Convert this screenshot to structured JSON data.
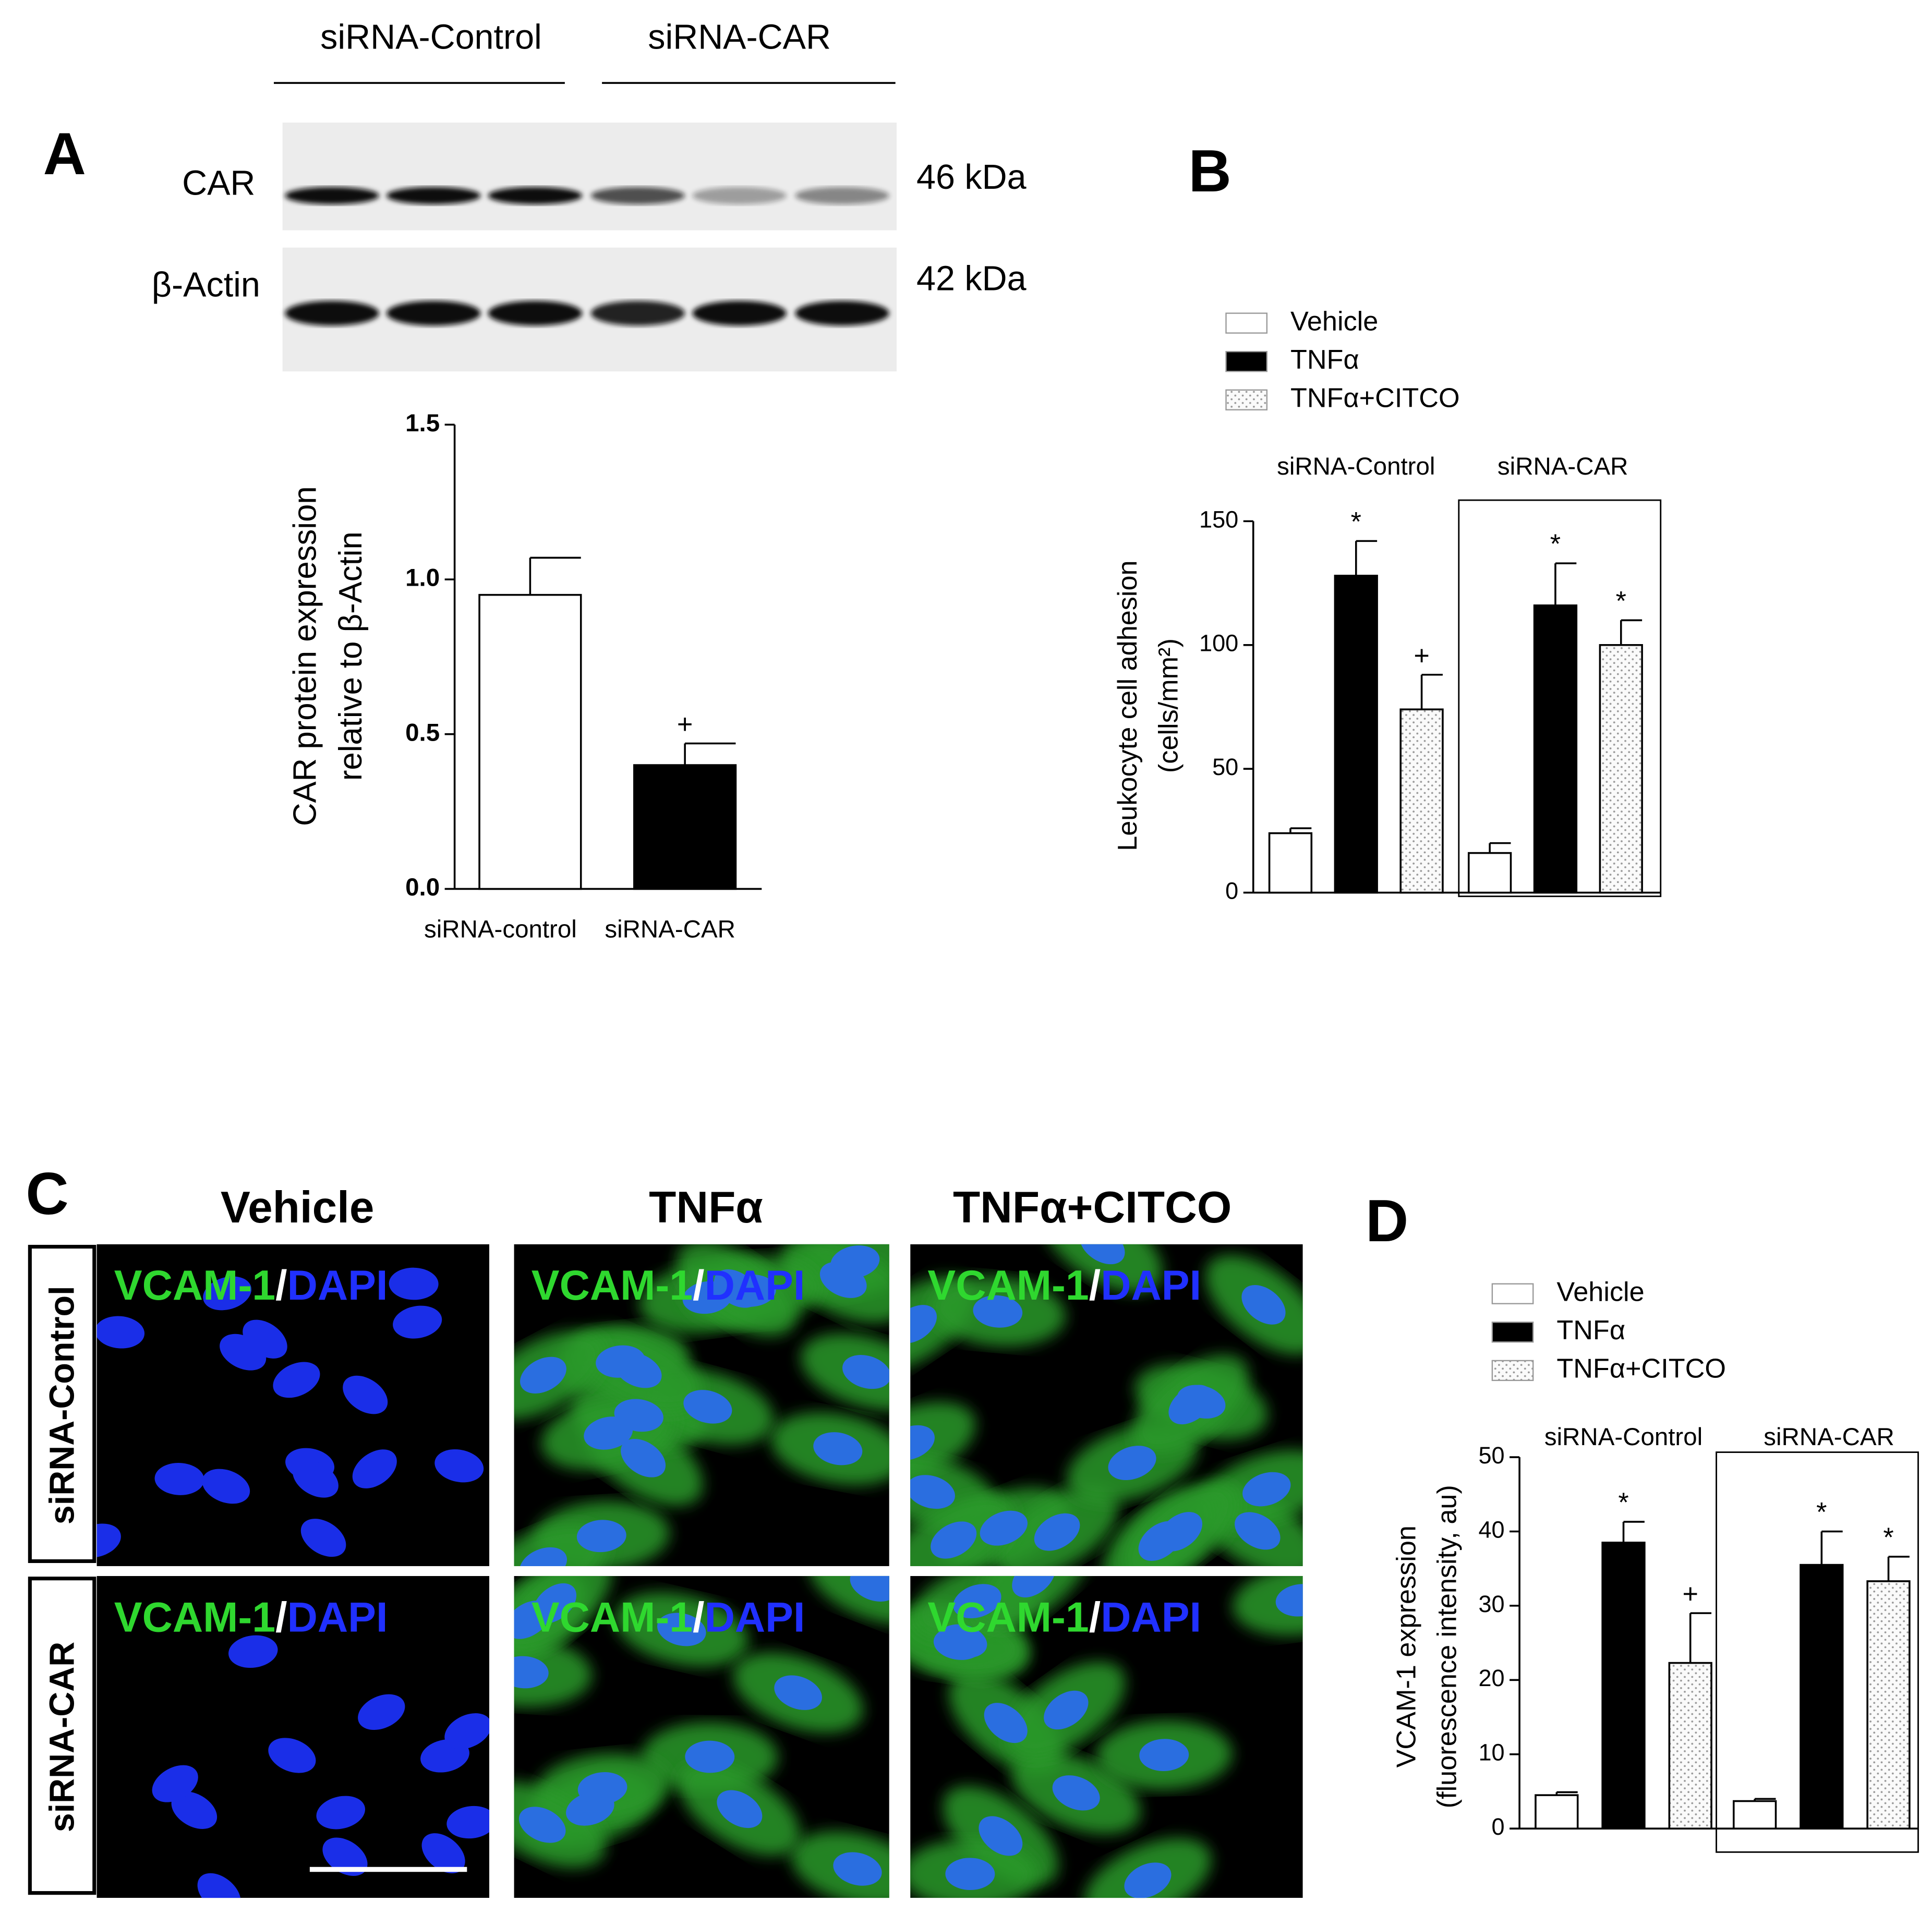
{
  "panel_labels": [
    "A",
    "B",
    "C",
    "D"
  ],
  "blot": {
    "groups": [
      "siRNA-Control",
      "siRNA-CAR"
    ],
    "rows": [
      {
        "label": "CAR",
        "size": "46 kDa"
      },
      {
        "label": "β-Actin",
        "size": "42 kDa"
      }
    ]
  },
  "chart_data": [
    {
      "type": "bar",
      "y_label": [
        "CAR protein expression",
        "relative to β-Actin"
      ],
      "categories": [
        "siRNA-control",
        "siRNA-CAR"
      ],
      "values": [
        0.95,
        0.4
      ],
      "errors": [
        0.12,
        0.07
      ],
      "colors": [
        "#ffffff",
        "#000000"
      ],
      "annotations": [
        null,
        "+"
      ],
      "ylim": [
        0,
        1.5
      ],
      "yticks": [
        {
          "value": 0,
          "label": "0.0"
        },
        {
          "value": 0.5,
          "label": "0.5"
        },
        {
          "value": 1,
          "label": "1.0"
        },
        {
          "value": 1.5,
          "label": "1.5"
        }
      ]
    },
    {
      "type": "grouped_bar",
      "y_label": [
        "Leukocyte cell adhesion",
        "(cells/mm²)"
      ],
      "groups": [
        "siRNA-Control",
        "siRNA-CAR"
      ],
      "series": [
        {
          "name": "Vehicle",
          "color": "#ffffff",
          "values": [
            24,
            16
          ],
          "errors": [
            2,
            4
          ],
          "annotations": [
            null,
            null
          ]
        },
        {
          "name": "TNFα",
          "color": "#000000",
          "values": [
            128,
            116
          ],
          "errors": [
            14,
            17
          ],
          "annotations": [
            "*",
            "*"
          ]
        },
        {
          "name": "TNFα+CITCO",
          "color": "#ffffff",
          "fill_pattern": "dots",
          "values": [
            74,
            100
          ],
          "errors": [
            14,
            10
          ],
          "annotations": [
            "+",
            "*"
          ]
        }
      ],
      "ylim": [
        0,
        150
      ],
      "yticks": [
        0,
        50,
        100,
        150
      ],
      "legend": "top-left"
    },
    {
      "type": "grouped_bar",
      "y_label": [
        "VCAM-1 expression",
        "(fluorescence intensity, au)"
      ],
      "groups": [
        "siRNA-Control",
        "siRNA-CAR"
      ],
      "series": [
        {
          "name": "Vehicle",
          "color": "#ffffff",
          "values": [
            4.5,
            3.7
          ],
          "errors": [
            0.4,
            0.3
          ],
          "annotations": [
            null,
            null
          ]
        },
        {
          "name": "TNFα",
          "color": "#000000",
          "values": [
            38.5,
            35.5
          ],
          "errors": [
            2.8,
            4.5
          ],
          "annotations": [
            "*",
            "*"
          ]
        },
        {
          "name": "TNFα+CITCO",
          "color": "#ffffff",
          "fill_pattern": "dots",
          "values": [
            22.3,
            33.3
          ],
          "errors": [
            6.7,
            3.3
          ],
          "annotations": [
            "+",
            "*"
          ]
        }
      ],
      "ylim": [
        0,
        50
      ],
      "yticks": [
        0,
        10,
        20,
        30,
        40,
        50
      ],
      "legend": "top-left"
    }
  ],
  "panel_c": {
    "columns": [
      "Vehicle",
      "TNFα",
      "TNFα+CITCO"
    ],
    "rows": [
      "siRNA-Control",
      "siRNA-CAR"
    ],
    "overlay": {
      "marker": "VCAM-1",
      "separator": "/",
      "stain": "DAPI"
    }
  }
}
